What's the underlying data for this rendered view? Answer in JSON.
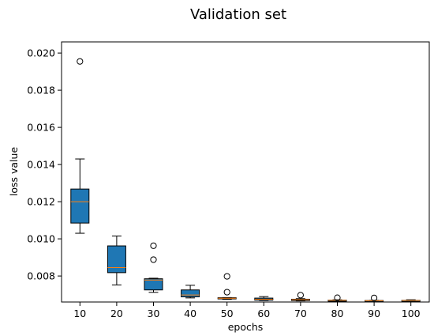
{
  "chart_data": {
    "type": "boxplot",
    "title": "Validation set",
    "xlabel": "epochs",
    "ylabel": "loss value",
    "ylim": [
      0.0066,
      0.0206
    ],
    "yticks": [
      "0.008",
      "0.010",
      "0.012",
      "0.014",
      "0.016",
      "0.018",
      "0.020"
    ],
    "yticks_values": [
      0.008,
      0.01,
      0.012,
      0.014,
      0.016,
      0.018,
      0.02
    ],
    "categories": [
      "10",
      "20",
      "30",
      "40",
      "50",
      "60",
      "70",
      "80",
      "90",
      "100"
    ],
    "boxes": [
      {
        "whisker_low": 0.0103,
        "q1": 0.01085,
        "median": 0.012,
        "q3": 0.01268,
        "whisker_high": 0.0143,
        "outliers": [
          0.01955
        ]
      },
      {
        "whisker_low": 0.00752,
        "q1": 0.00818,
        "median": 0.00845,
        "q3": 0.00962,
        "whisker_high": 0.01015,
        "outliers": []
      },
      {
        "whisker_low": 0.00712,
        "q1": 0.00725,
        "median": 0.00778,
        "q3": 0.00785,
        "whisker_high": 0.00788,
        "outliers": [
          0.00888,
          0.00963
        ]
      },
      {
        "whisker_low": 0.00682,
        "q1": 0.00688,
        "median": 0.00698,
        "q3": 0.00725,
        "whisker_high": 0.0075,
        "outliers": []
      },
      {
        "whisker_low": 0.00674,
        "q1": 0.00678,
        "median": 0.0068,
        "q3": 0.00683,
        "whisker_high": 0.00684,
        "outliers": [
          0.00713,
          0.00798
        ]
      },
      {
        "whisker_low": 0.00668,
        "q1": 0.0067,
        "median": 0.00675,
        "q3": 0.00681,
        "whisker_high": 0.00689,
        "outliers": []
      },
      {
        "whisker_low": 0.00666,
        "q1": 0.00668,
        "median": 0.00673,
        "q3": 0.00675,
        "whisker_high": 0.00678,
        "outliers": [
          0.00697
        ]
      },
      {
        "whisker_low": 0.00666,
        "q1": 0.00667,
        "median": 0.00669,
        "q3": 0.0067,
        "whisker_high": 0.00672,
        "outliers": [
          0.00683
        ]
      },
      {
        "whisker_low": 0.00665,
        "q1": 0.00666,
        "median": 0.00667,
        "q3": 0.00668,
        "whisker_high": 0.00669,
        "outliers": [
          0.00682
        ]
      },
      {
        "whisker_low": 0.00665,
        "q1": 0.00666,
        "median": 0.00668,
        "q3": 0.00669,
        "whisker_high": 0.00672,
        "outliers": []
      }
    ],
    "colors": {
      "box_fill": "#1f77b4",
      "median": "#ff7f0e",
      "line": "#000000"
    }
  }
}
